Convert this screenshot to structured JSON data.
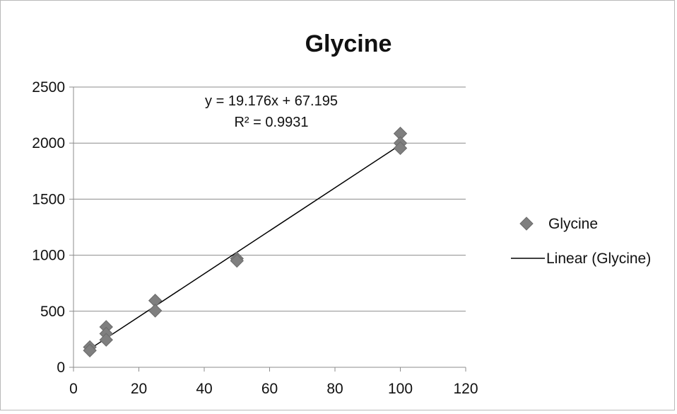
{
  "chart_data": {
    "type": "scatter",
    "title": "Glycine",
    "xlim": [
      0,
      120
    ],
    "ylim": [
      0,
      2500
    ],
    "x_ticks": [
      0,
      20,
      40,
      60,
      80,
      100,
      120
    ],
    "y_ticks": [
      0,
      500,
      1000,
      1500,
      2000,
      2500
    ],
    "grid": "horizontal",
    "legend_position": "right",
    "series": [
      {
        "name": "Glycine",
        "marker": "diamond",
        "color": "#7f7f7f",
        "points": [
          {
            "x": 5,
            "y": 180
          },
          {
            "x": 5,
            "y": 150
          },
          {
            "x": 10,
            "y": 360
          },
          {
            "x": 10,
            "y": 300
          },
          {
            "x": 10,
            "y": 245
          },
          {
            "x": 25,
            "y": 595
          },
          {
            "x": 25,
            "y": 505
          },
          {
            "x": 50,
            "y": 970
          },
          {
            "x": 50,
            "y": 950
          },
          {
            "x": 100,
            "y": 2085
          },
          {
            "x": 100,
            "y": 2000
          },
          {
            "x": 100,
            "y": 1955
          }
        ]
      }
    ],
    "trendline": {
      "name": "Linear (Glycine)",
      "slope": 19.176,
      "intercept": 67.195,
      "x_range": [
        5,
        100
      ],
      "color": "#000000",
      "equation_label": "y = 19.176x + 67.195",
      "r2_label": "R² = 0.9931"
    }
  }
}
